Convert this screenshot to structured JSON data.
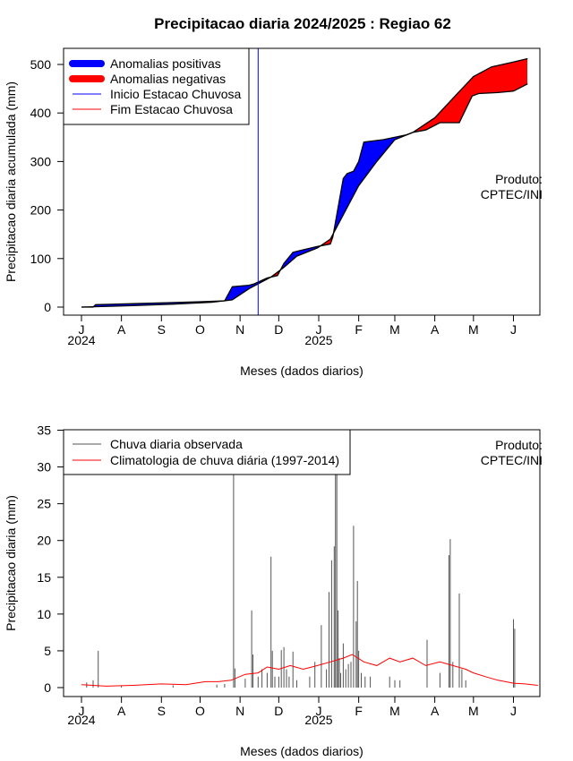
{
  "chart_data": [
    {
      "type": "area",
      "title": "Precipitacao diaria 2024/2025 : Regiao 62",
      "xlabel": "Meses (dados diarios)",
      "ylabel": "Precipitacao diaria acumulada (mm)",
      "ylim": [
        0,
        520
      ],
      "yticks": [
        0,
        100,
        200,
        300,
        400,
        500
      ],
      "xticks": [
        "J",
        "A",
        "S",
        "O",
        "N",
        "D",
        "J",
        "F",
        "M",
        "A",
        "M",
        "J"
      ],
      "year_labels": [
        "2024",
        "2025"
      ],
      "annotation": [
        "Produto:",
        "CPTEC/INI"
      ],
      "legend": {
        "position": "top-left",
        "entries": [
          {
            "label": "Anomalias positivas",
            "color": "#0000ff",
            "style": "thick"
          },
          {
            "label": "Anomalias negativas",
            "color": "#ff0000",
            "style": "thick"
          },
          {
            "label": "Inicio Estacao Chuvosa",
            "color": "#0000ff",
            "style": "thin"
          },
          {
            "label": "Fim Estacao Chuvosa",
            "color": "#ff0000",
            "style": "thin"
          }
        ]
      },
      "rainy_season_start": "2024-11-15",
      "series": [
        {
          "name": "observed_cumulative",
          "x": [
            "2024-07-01",
            "2024-07-10",
            "2024-07-12",
            "2024-08-10",
            "2024-09-05",
            "2024-10-01",
            "2024-10-20",
            "2024-10-26",
            "2024-11-08",
            "2024-11-12",
            "2024-11-22",
            "2024-11-30",
            "2024-12-05",
            "2024-12-12",
            "2024-12-20",
            "2024-12-31",
            "2025-01-10",
            "2025-01-12",
            "2025-01-20",
            "2025-01-23",
            "2025-01-28",
            "2025-02-01",
            "2025-02-05",
            "2025-02-20",
            "2025-03-10",
            "2025-03-15",
            "2025-03-25",
            "2025-04-05",
            "2025-04-10",
            "2025-04-20",
            "2025-04-30",
            "2025-05-05",
            "2025-05-20",
            "2025-06-01",
            "2025-06-12"
          ],
          "values": [
            0,
            0,
            5,
            7,
            9,
            11,
            13,
            42,
            45,
            48,
            60,
            65,
            90,
            113,
            118,
            125,
            130,
            145,
            265,
            275,
            280,
            300,
            340,
            345,
            355,
            360,
            365,
            380,
            380,
            380,
            435,
            440,
            442,
            445,
            460
          ]
        },
        {
          "name": "climatology_cumulative",
          "x": [
            "2024-07-01",
            "2024-08-10",
            "2024-09-10",
            "2024-10-10",
            "2024-10-26",
            "2024-11-08",
            "2024-11-15",
            "2024-11-25",
            "2024-12-05",
            "2024-12-15",
            "2024-12-31",
            "2025-01-10",
            "2025-01-20",
            "2025-02-01",
            "2025-02-15",
            "2025-03-01",
            "2025-03-15",
            "2025-04-01",
            "2025-04-15",
            "2025-05-01",
            "2025-05-15",
            "2025-06-01",
            "2025-06-12"
          ],
          "values": [
            0,
            3,
            6,
            10,
            15,
            38,
            48,
            62,
            82,
            105,
            122,
            140,
            190,
            250,
            300,
            345,
            360,
            390,
            430,
            475,
            495,
            505,
            512
          ]
        }
      ]
    },
    {
      "type": "bar",
      "title": "",
      "xlabel": "Meses (dados diarios)",
      "ylabel": "Precipitacao diaria (mm)",
      "ylim": [
        0,
        35
      ],
      "yticks": [
        0,
        5,
        10,
        15,
        20,
        25,
        30,
        35
      ],
      "xticks": [
        "J",
        "A",
        "S",
        "O",
        "N",
        "D",
        "J",
        "F",
        "M",
        "A",
        "M",
        "J"
      ],
      "year_labels": [
        "2024",
        "2025"
      ],
      "annotation": [
        "Produto:",
        "CPTEC/INI"
      ],
      "legend": {
        "position": "top-left",
        "entries": [
          {
            "label": "Chuva diaria observada",
            "color": "#555555"
          },
          {
            "label": "Climatologia de chuva diária (1997-2014)",
            "color": "#ff0000"
          }
        ]
      },
      "series": [
        {
          "name": "observed_daily",
          "x": [
            "2024-07-05",
            "2024-07-10",
            "2024-07-14",
            "2024-08-01",
            "2024-09-10",
            "2024-10-14",
            "2024-10-20",
            "2024-10-27",
            "2024-10-28",
            "2024-11-05",
            "2024-11-10",
            "2024-11-11",
            "2024-11-15",
            "2024-11-18",
            "2024-11-22",
            "2024-11-25",
            "2024-11-26",
            "2024-11-28",
            "2024-12-01",
            "2024-12-03",
            "2024-12-05",
            "2024-12-07",
            "2024-12-09",
            "2024-12-12",
            "2024-12-15",
            "2024-12-25",
            "2024-12-29",
            "2025-01-03",
            "2025-01-07",
            "2025-01-09",
            "2025-01-11",
            "2025-01-13",
            "2025-01-14",
            "2025-01-15",
            "2025-01-16",
            "2025-01-17",
            "2025-01-18",
            "2025-01-20",
            "2025-01-22",
            "2025-01-24",
            "2025-01-26",
            "2025-01-28",
            "2025-01-30",
            "2025-01-31",
            "2025-02-01",
            "2025-02-03",
            "2025-02-06",
            "2025-02-10",
            "2025-02-25",
            "2025-03-01",
            "2025-03-05",
            "2025-03-26",
            "2025-04-05",
            "2025-04-12",
            "2025-04-13",
            "2025-04-15",
            "2025-04-20",
            "2025-04-22",
            "2025-04-25",
            "2025-06-01",
            "2025-06-02"
          ],
          "values": [
            0.7,
            1.0,
            5.0,
            0.3,
            0.3,
            0.4,
            0.5,
            29,
            2.6,
            1.2,
            10.5,
            4.5,
            1.5,
            2.5,
            2.0,
            17.8,
            5.0,
            1.5,
            1.5,
            5.1,
            5.5,
            2.5,
            1.5,
            4.9,
            1.0,
            1.5,
            3.5,
            8.5,
            2.5,
            13.0,
            17.3,
            19.2,
            29.0,
            29.0,
            10.5,
            4.0,
            2.0,
            6.0,
            2.5,
            3.2,
            3.5,
            22.0,
            9.0,
            14.5,
            5.0,
            2.0,
            1.5,
            1.5,
            1.5,
            1.0,
            1.0,
            6.5,
            2.0,
            18.0,
            20.2,
            3.5,
            12.8,
            2.5,
            1.0,
            9.3,
            8.0
          ]
        },
        {
          "name": "climatology_daily",
          "x": [
            "2024-07-01",
            "2024-07-20",
            "2024-08-10",
            "2024-09-01",
            "2024-09-20",
            "2024-10-05",
            "2024-10-15",
            "2024-10-25",
            "2024-11-05",
            "2024-11-15",
            "2024-11-22",
            "2024-12-01",
            "2024-12-10",
            "2024-12-20",
            "2024-12-31",
            "2025-01-10",
            "2025-01-20",
            "2025-01-27",
            "2025-02-05",
            "2025-02-15",
            "2025-02-25",
            "2025-03-05",
            "2025-03-15",
            "2025-03-25",
            "2025-04-05",
            "2025-04-15",
            "2025-04-25",
            "2025-05-01",
            "2025-05-10",
            "2025-05-20",
            "2025-06-01",
            "2025-06-10",
            "2025-06-20"
          ],
          "values": [
            0.4,
            0.2,
            0.3,
            0.5,
            0.4,
            0.8,
            0.8,
            1.0,
            1.8,
            2.0,
            2.8,
            2.5,
            3.0,
            2.5,
            3.0,
            3.5,
            4.0,
            4.5,
            3.5,
            3.0,
            4.0,
            3.5,
            4.0,
            3.0,
            3.5,
            3.0,
            2.5,
            2.0,
            1.5,
            1.0,
            0.6,
            0.5,
            0.3
          ]
        }
      ]
    }
  ]
}
